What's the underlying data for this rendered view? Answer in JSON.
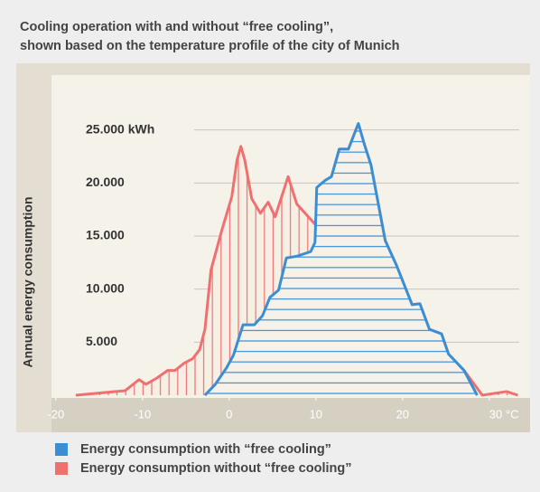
{
  "chart_data": {
    "type": "area",
    "title": [
      "Cooling operation with and without “free cooling”,",
      "shown based on the temperature profile of the city of Munich"
    ],
    "ylabel": "Annual energy consumption",
    "xlim": [
      -20.5,
      34.5
    ],
    "ylim": [
      0,
      30000
    ],
    "xticks": [
      -20,
      -10,
      0,
      10,
      20,
      {
        "value": 30,
        "label": "30 °C"
      }
    ],
    "yticks": [
      {
        "value": 5000,
        "label": "5.000"
      },
      {
        "value": 10000,
        "label": "10.000"
      },
      {
        "value": 15000,
        "label": "15.000"
      },
      {
        "value": 20000,
        "label": "20.000"
      },
      {
        "value": 25000,
        "label": "25.000 kWh"
      }
    ],
    "grid": true,
    "series": [
      {
        "name": "Energy consumption without “free cooling”",
        "color": "#f07070",
        "hatch": "vertical",
        "x": [
          -17.7,
          -12,
          -10.4,
          -9.6,
          -8.3,
          -7.1,
          -6.25,
          -5.2,
          -4.2,
          -3.4,
          -2.8,
          -2.1,
          -0.8,
          0.3,
          0.9,
          1.35,
          1.8,
          2.6,
          3.6,
          4.5,
          5.3,
          6.8,
          7.8,
          9.9,
          10.7,
          11.8,
          12.7,
          13.75,
          14.9,
          15.6,
          16.35,
          18,
          19.3,
          21.1,
          22,
          23.1,
          24.5,
          25.3,
          27.1,
          29.2,
          32,
          33.3
        ],
        "values": [
          0,
          430,
          1470,
          1030,
          1640,
          2330,
          2330,
          3020,
          3450,
          4310,
          6200,
          11800,
          15690,
          18700,
          22160,
          23450,
          22160,
          18530,
          17150,
          18190,
          16810,
          20600,
          18020,
          16120,
          20000,
          20600,
          23190,
          23190,
          25600,
          23620,
          21720,
          14570,
          12240,
          8530,
          8620,
          6210,
          5780,
          3880,
          2330,
          0,
          345,
          0
        ]
      },
      {
        "name": "Energy consumption with “free cooling”",
        "color": "#3a8fd4",
        "hatch": "horizontal",
        "x": [
          -2.8,
          -1.6,
          -0.3,
          0.5,
          1.6,
          2.9,
          3.85,
          4.7,
          5.7,
          6.6,
          7.8,
          9.4,
          9.9,
          10.1,
          11.1,
          11.8,
          12.7,
          13.75,
          14.9,
          15.6,
          16.35,
          18,
          19.3,
          21.1,
          22,
          23.1,
          24.5,
          25.3,
          27.1,
          28.6
        ],
        "values": [
          0,
          1030,
          2590,
          3790,
          6640,
          6640,
          7500,
          9220,
          9910,
          12930,
          13100,
          13530,
          14400,
          19570,
          20260,
          20600,
          23190,
          23190,
          25600,
          23620,
          21720,
          14570,
          12240,
          8530,
          8620,
          6210,
          5780,
          3880,
          2330,
          0
        ]
      }
    ]
  }
}
